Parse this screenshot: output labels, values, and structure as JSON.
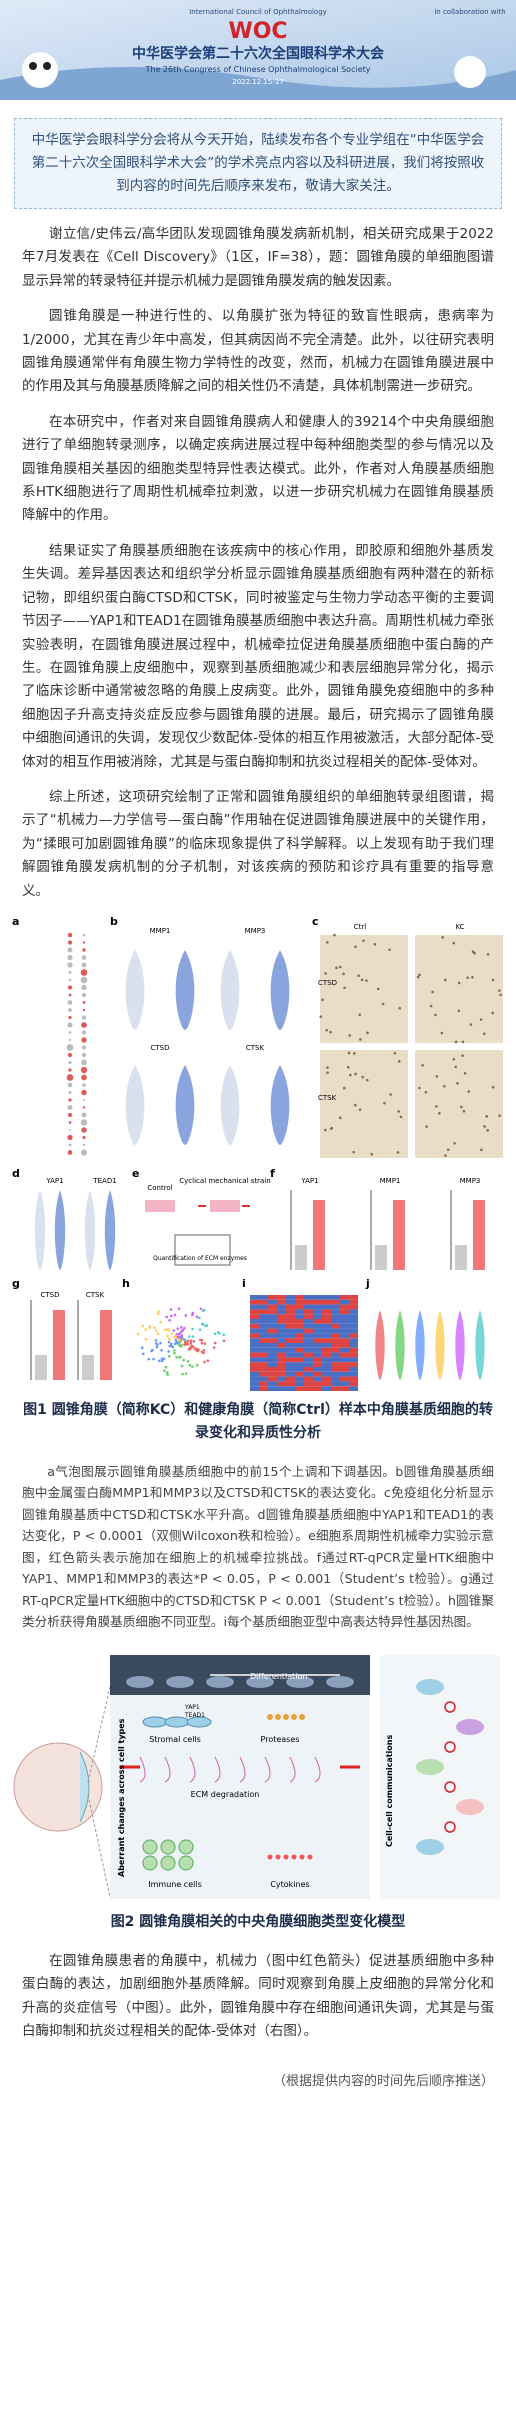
{
  "header": {
    "organizer": "International Council of Ophthalmology",
    "logo": "WOC",
    "title": "中华医学会第二十六次全国眼科学术大会",
    "subtitle": "The 26th Congress of Chinese Ophthalmological Society",
    "date": "2022.12.15-17",
    "partner": "in collaboration with"
  },
  "notice": "中华医学会眼科学分会将从今天开始，陆续发布各个专业学组在“中华医学会第二十六次全国眼科学术大会”的学术亮点内容以及科研进展，我们将按照收到内容的时间先后顺序来发布，敬请大家关注。",
  "paragraphs": [
    "谢立信/史伟云/高华团队发现圆锥角膜发病新机制，相关研究成果于2022年7月发表在《Cell Discovery》（1区，IF=38），题：圆锥角膜的单细胞图谱显示异常的转录特征并提示机械力是圆锥角膜发病的触发因素。",
    "圆锥角膜是一种进行性的、以角膜扩张为特征的致盲性眼病，患病率为1/2000，尤其在青少年中高发，但其病因尚不完全清楚。此外，以往研究表明圆锥角膜通常伴有角膜生物力学特性的改变，然而，机械力在圆锥角膜进展中的作用及其与角膜基质降解之间的相关性仍不清楚，具体机制需进一步研究。",
    "在本研究中，作者对来自圆锥角膜病人和健康人的39214个中央角膜细胞进行了单细胞转录测序，以确定疾病进展过程中每种细胞类型的参与情况以及圆锥角膜相关基因的细胞类型特异性表达模式。此外，作者对人角膜基质细胞系HTK细胞进行了周期性机械牵拉刺激，以进一步研究机械力在圆锥角膜基质降解中的作用。",
    "结果证实了角膜基质细胞在该疾病中的核心作用，即胶原和细胞外基质发生失调。差异基因表达和组织学分析显示圆锥角膜基质细胞有两种潜在的新标记物，即组织蛋白酶CTSD和CTSK，同时被鉴定与生物力学动态平衡的主要调节因子——YAP1和TEAD1在圆锥角膜基质细胞中表达升高。周期性机械力牵张实验表明，在圆锥角膜进展过程中，机械牵拉促进角膜基质细胞中蛋白酶的产生。在圆锥角膜上皮细胞中，观察到基质细胞减少和表层细胞异常分化，揭示了临床诊断中通常被忽略的角膜上皮病变。此外，圆锥角膜免疫细胞中的多种细胞因子升高支持炎症反应参与圆锥角膜的进展。最后，研究揭示了圆锥角膜中细胞间通讯的失调，发现仅少数配体-受体的相互作用被激活，大部分配体-受体对的相互作用被消除，尤其是与蛋白酶抑制和抗炎过程相关的配体-受体对。",
    "综上所述，这项研究绘制了正常和圆锥角膜组织的单细胞转录组图谱，揭示了“机械力—力学信号—蛋白酶”作用轴在促进圆锥角膜进展中的关键作用，为“揉眼可加剧圆锥角膜”的临床现象提供了科学解释。以上发现有助于我们理解圆锥角膜发病机制的分子机制，对该疾病的预防和诊疗具有重要的指导意义。"
  ],
  "figure1": {
    "panels": [
      "a",
      "b",
      "c",
      "d",
      "e",
      "f",
      "g",
      "h",
      "i",
      "j"
    ],
    "labels": {
      "ctrl": "Ctrl",
      "kc": "KC",
      "ctsd": "CTSD",
      "ctsk": "CTSK",
      "mmp1": "MMP1",
      "mmp3": "MMP3",
      "yap1": "YAP1",
      "tead1": "TEAD1",
      "control": "Control",
      "strain": "Cyclical mechanical strain",
      "quant": "Quantification of ECM enzymes"
    },
    "caption": "图1 圆锥角膜（简称KC）和健康角膜（简称Ctrl）样本中角膜基质细胞的转录变化和异质性分析",
    "legend": "a气泡图展示圆锥角膜基质细胞中的前15个上调和下调基因。b圆锥角膜基质细胞中金属蛋白酶MMP1和MMP3以及CTSD和CTSK的表达变化。c免疫组化分析显示圆锥角膜基质中CTSD和CTSK水平升高。d圆锥角膜基质细胞中YAP1和TEAD1的表达变化，P < 0.0001（双侧Wilcoxon秩和检验）。e细胞系周期性机械牵力实验示意图，红色箭头表示施加在细胞上的机械牵拉挑战。f通过RT-qPCR定量HTK细胞中YAP1、MMP1和MMP3的表达*P < 0.05，P < 0.001（Student’s t检验）。g通过RT-qPCR定量HTK细胞中的CTSD和CTSK P < 0.001（Student’s t检验）。h圆锥聚类分析获得角膜基质细胞不同亚型。i每个基质细胞亚型中高表达特异性基因热图。"
  },
  "figure2": {
    "labels": {
      "differentiation": "Differentiation",
      "stromal": "Stromal cells",
      "proteases": "Proteases",
      "ecm": "ECM degradation",
      "immune": "Immune cells",
      "cytokines": "Cytokines",
      "aberrant": "Aberrant changes across cell types",
      "communication": "Cell-cell communications",
      "yap1": "YAP1",
      "tead1": "TEAD1"
    },
    "caption": "图2 圆锥角膜相关的中央角膜细胞类型变化模型"
  },
  "closing": "在圆锥角膜患者的角膜中，机械力（图中红色箭头）促进基质细胞中多种蛋白酶的表达，加剧细胞外基质降解。同时观察到角膜上皮细胞的异常分化和升高的炎症信号（中图）。此外，圆锥角膜中存在细胞间通讯失调，尤其是与蛋白酶抑制和抗炎过程相关的配体-受体对（右图）。",
  "footer": "（根据提供内容的时间先后顺序推送）"
}
